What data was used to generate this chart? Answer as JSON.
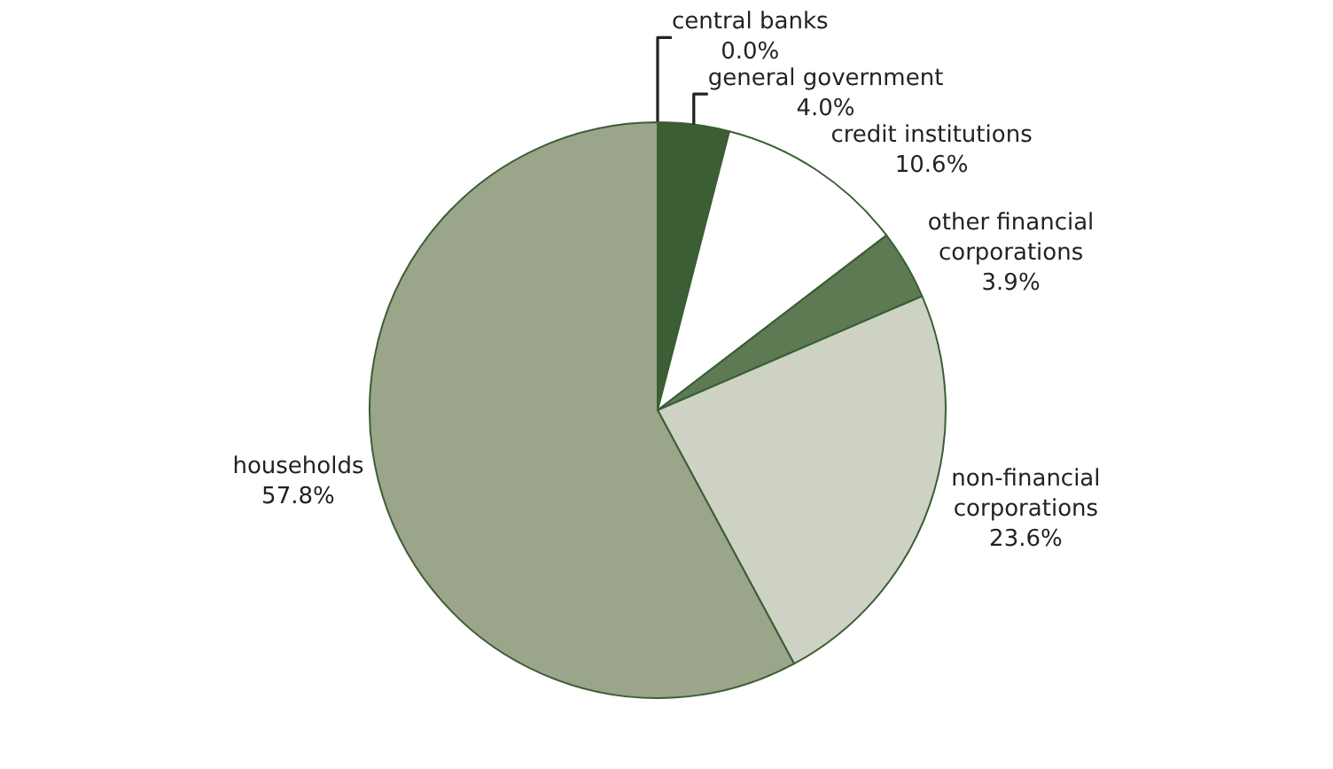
{
  "chart_data": {
    "type": "pie",
    "categories": [
      "central banks",
      "general government",
      "credit institutions",
      "other financial corporations",
      "non-financial corporations",
      "households"
    ],
    "values": [
      0.0,
      4.0,
      10.6,
      3.9,
      23.6,
      57.8
    ],
    "value_labels": [
      "0.0%",
      "4.0%",
      "10.6%",
      "3.9%",
      "23.6%",
      "57.8%"
    ],
    "colors": [
      "#2f4f2a",
      "#3b5e35",
      "#ffffff",
      "#5e7a52",
      "#cdd2c4",
      "#9aa58a"
    ],
    "legend": false
  }
}
